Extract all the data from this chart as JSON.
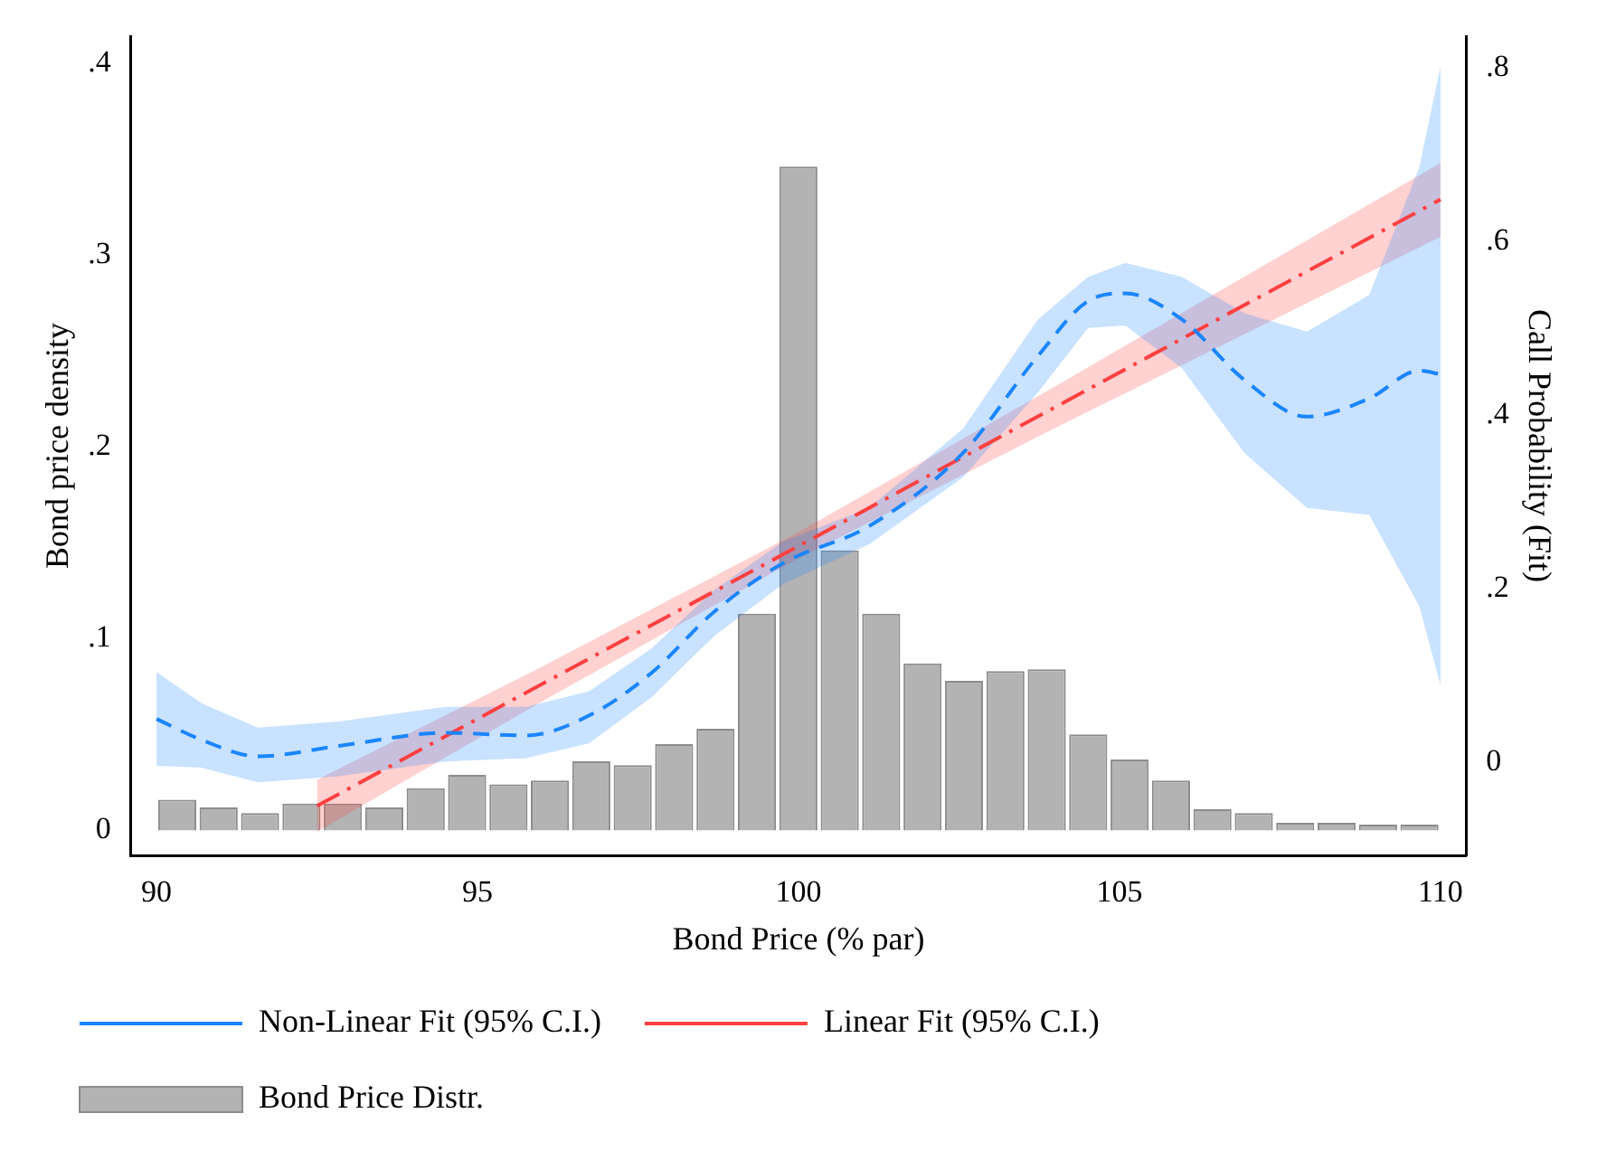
{
  "chart_data": {
    "type": "histogram",
    "xlabel": "Bond Price (% par)",
    "ylabel": "Bond price density",
    "y2label": "Call Probability (Fit)",
    "xlim": [
      89.6,
      110.4
    ],
    "xticks": [
      90,
      95,
      100,
      105,
      110
    ],
    "ylim": [
      -0.013,
      0.414
    ],
    "yticks": [
      0,
      {
        "value": 0.1,
        "label": ".1"
      },
      {
        "value": 0.2,
        "label": ".2"
      },
      {
        "value": 0.3,
        "label": ".3"
      },
      {
        "value": 0.4,
        "label": ".4"
      }
    ],
    "y2lim": [
      -0.107,
      0.836
    ],
    "y2ticks": [
      0,
      {
        "value": 0.2,
        "label": ".2"
      },
      {
        "value": 0.4,
        "label": ".4"
      },
      {
        "value": 0.6,
        "label": ".6"
      },
      {
        "value": 0.8,
        "label": ".8"
      }
    ],
    "legend": "bottom",
    "grid": false,
    "series": [
      {
        "type": "histogram",
        "name": "Bond Price Distr.",
        "color": "#b3b3b3",
        "bins": [
          90,
          90.645,
          91.29,
          91.935,
          92.58,
          93.225,
          93.87,
          94.515,
          95.16,
          95.805,
          96.45,
          97.095,
          97.74,
          98.385,
          99.03,
          99.675,
          100.32,
          100.965,
          101.61,
          102.255,
          102.9,
          103.545,
          104.19,
          104.835,
          105.48,
          106.125,
          106.77,
          107.415,
          108.06,
          108.705,
          109.35,
          109.995
        ],
        "values": [
          0.016,
          0.012,
          0.009,
          0.014,
          0.014,
          0.012,
          0.022,
          0.029,
          0.024,
          0.026,
          0.036,
          0.034,
          0.045,
          0.053,
          0.113,
          0.346,
          0.146,
          0.113,
          0.087,
          0.078,
          0.083,
          0.084,
          0.05,
          0.037,
          0.026,
          0.011,
          0.009,
          0.004,
          0.004,
          0.003,
          0.003
        ]
      },
      {
        "type": "line",
        "name": "Non-Linear Fit (95% C.I.)",
        "color": "#1a85ff",
        "axis": "y2",
        "line_style": "dashed",
        "x": [
          90,
          90.7,
          91.58,
          92.84,
          94.5,
          95.76,
          96.74,
          97.71,
          98.68,
          99.75,
          101.1,
          102.56,
          103.73,
          104.51,
          105.09,
          105.97,
          106.95,
          107.92,
          108.89,
          109.67,
          110
        ],
        "values": [
          0.05,
          0.026,
          0.007,
          0.019,
          0.034,
          0.031,
          0.054,
          0.103,
          0.173,
          0.229,
          0.272,
          0.356,
          0.468,
          0.531,
          0.54,
          0.51,
          0.44,
          0.398,
          0.419,
          0.451,
          0.447
        ],
        "lower": [
          -0.004,
          -0.006,
          -0.023,
          -0.016,
          0.001,
          0.005,
          0.022,
          0.075,
          0.145,
          0.205,
          0.251,
          0.328,
          0.426,
          0.5,
          0.503,
          0.454,
          0.356,
          0.293,
          0.285,
          0.18,
          0.089
        ],
        "upper": [
          0.104,
          0.068,
          0.04,
          0.047,
          0.064,
          0.064,
          0.082,
          0.131,
          0.198,
          0.254,
          0.293,
          0.384,
          0.51,
          0.559,
          0.575,
          0.559,
          0.517,
          0.496,
          0.538,
          0.685,
          0.801
        ]
      },
      {
        "type": "line",
        "name": "Linear Fit (95% C.I.)",
        "color": "#ff4040",
        "axis": "y2",
        "line_style": "dashdot",
        "x": [
          92.5,
          96,
          100,
          104,
          110
        ],
        "values": [
          -0.05,
          0.09,
          0.249,
          0.409,
          0.648
        ],
        "lower": [
          -0.08,
          0.07,
          0.235,
          0.385,
          0.605
        ],
        "upper": [
          -0.02,
          0.11,
          0.265,
          0.433,
          0.69
        ]
      }
    ]
  }
}
